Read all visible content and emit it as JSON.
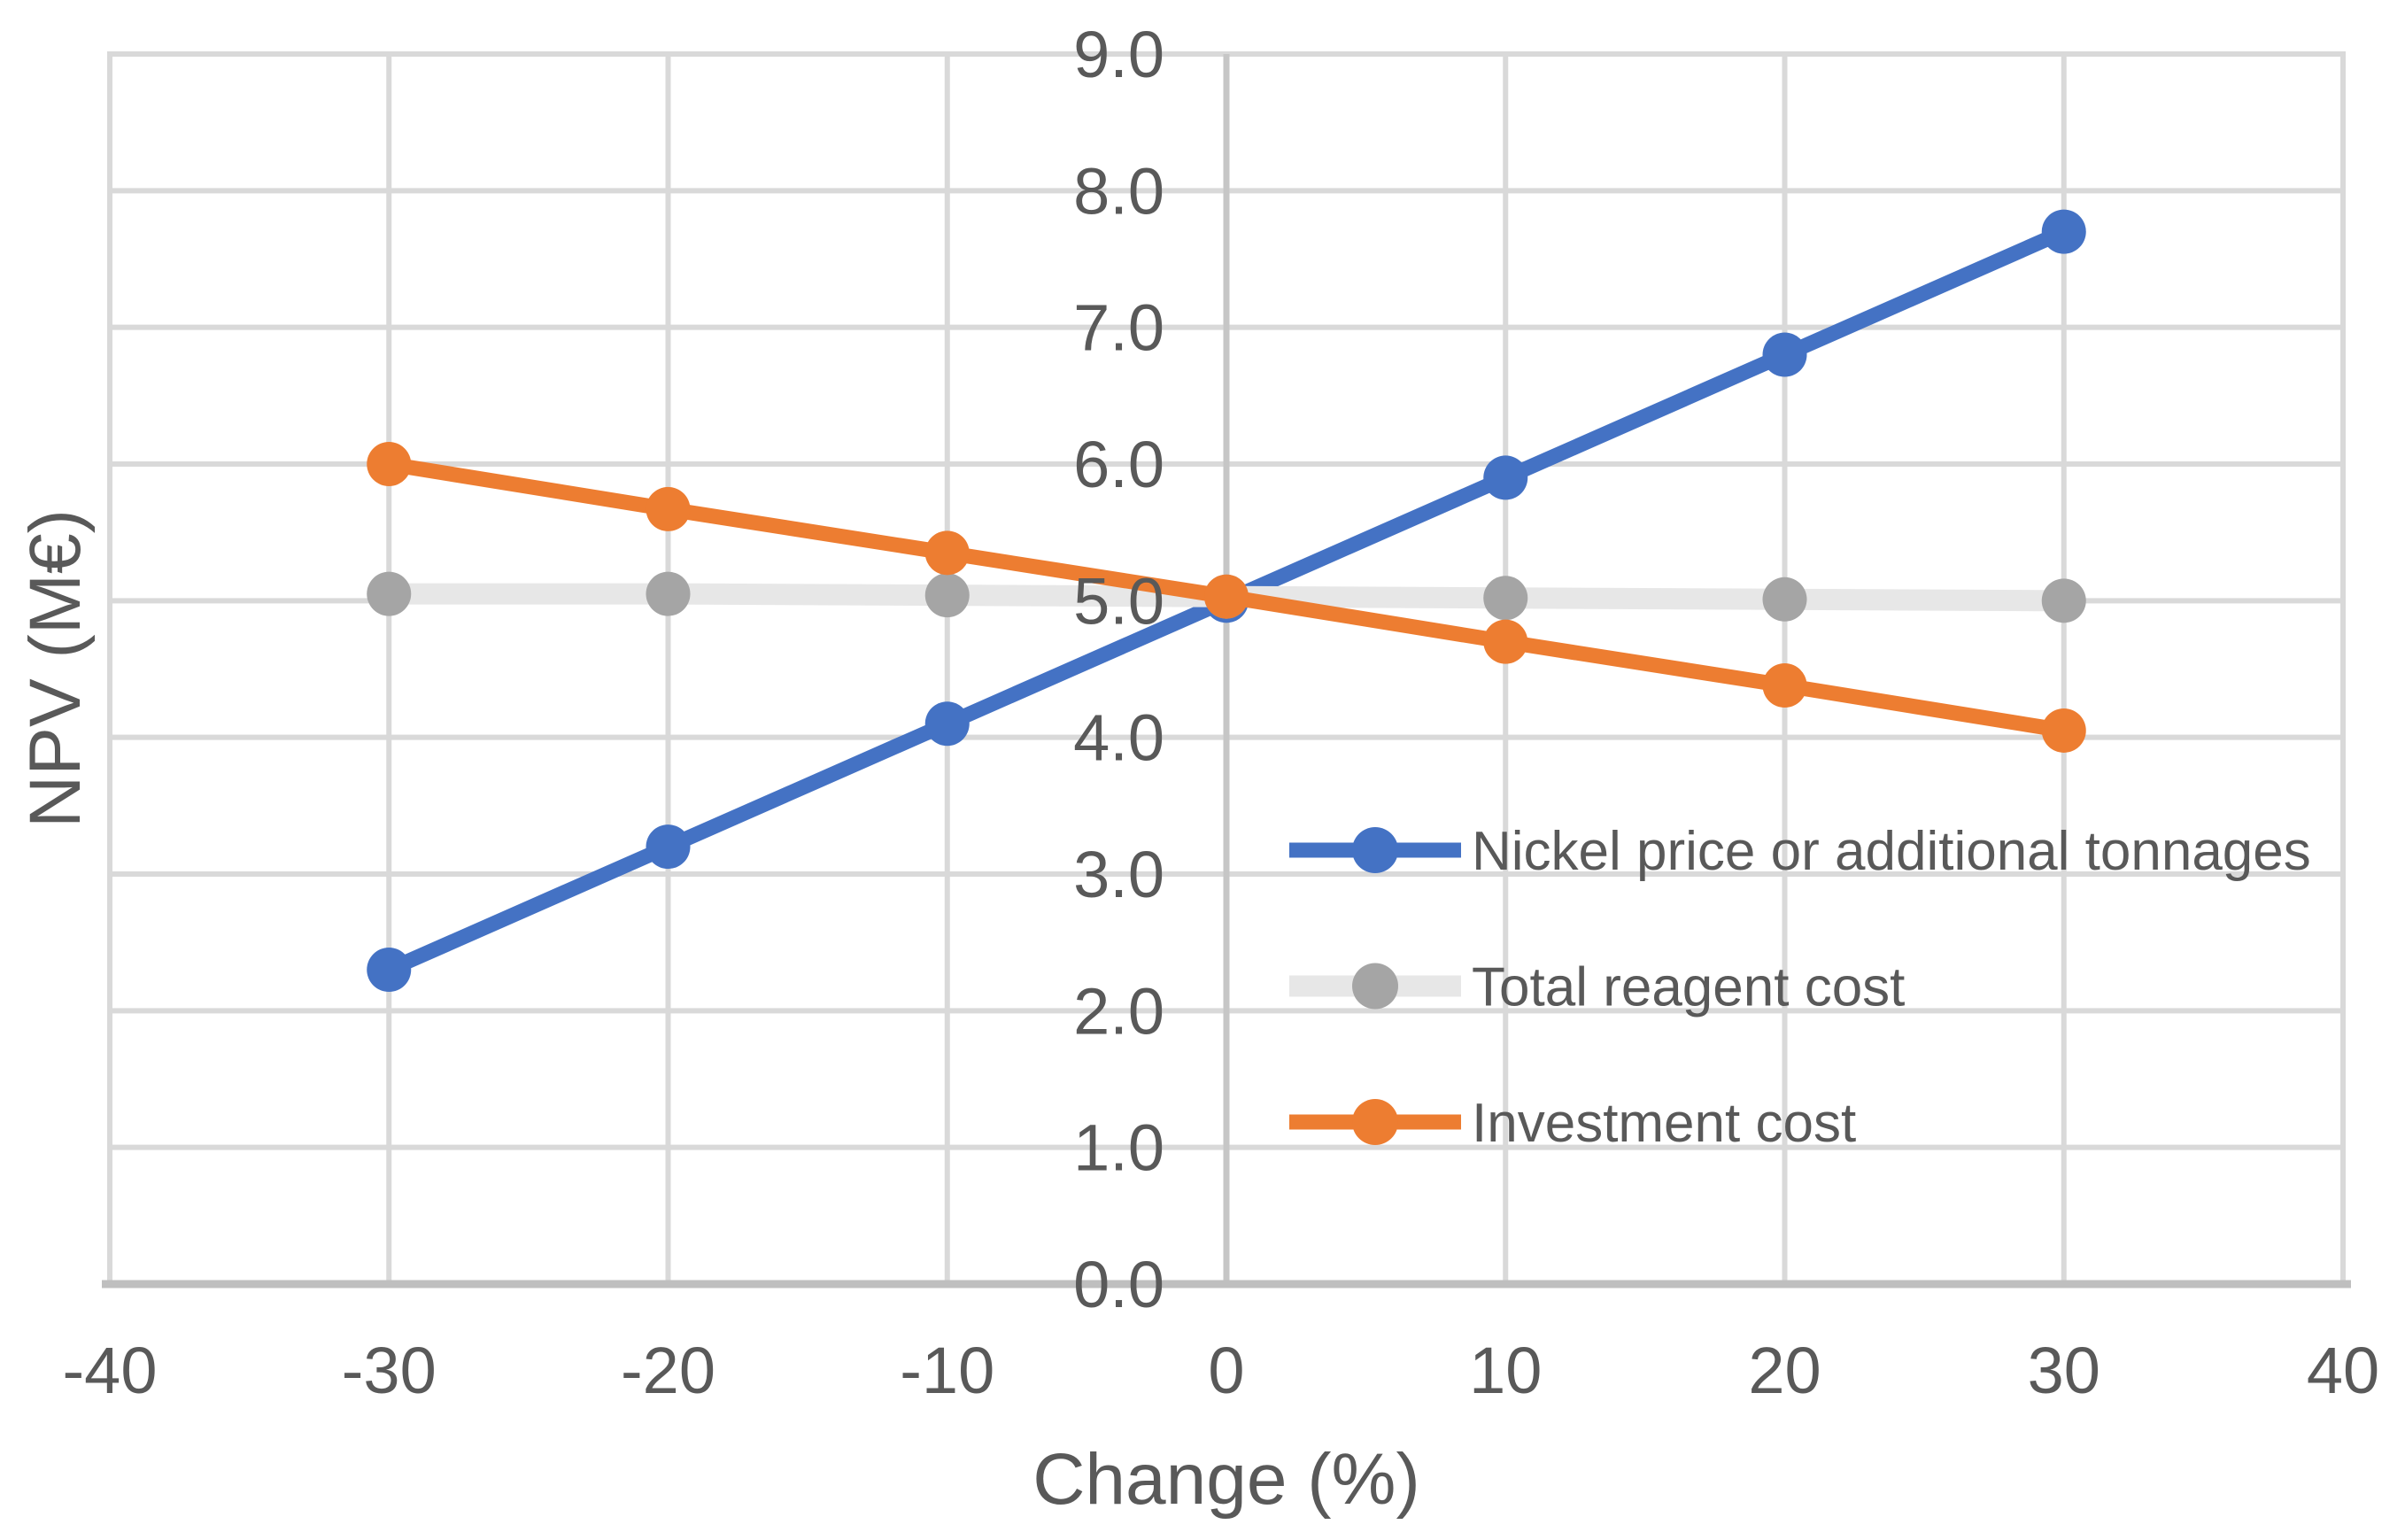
{
  "chart_data": {
    "type": "line",
    "title": "",
    "xlabel": "Change (%)",
    "ylabel": "NPV (M€)",
    "x": [
      -30,
      -20,
      -10,
      0,
      10,
      20,
      30
    ],
    "xlim": [
      -40,
      40
    ],
    "ylim": [
      0,
      9
    ],
    "x_tick_values": [
      -40,
      -30,
      -20,
      -10,
      0,
      10,
      20,
      30,
      40
    ],
    "x_tick_labels": [
      "-40",
      "-30",
      "-20",
      "-10",
      "0",
      "10",
      "20",
      "30",
      "40"
    ],
    "y_tick_values": [
      0,
      1,
      2,
      3,
      4,
      5,
      6,
      7,
      8,
      9
    ],
    "y_tick_labels": [
      "0.0",
      "1.0",
      "2.0",
      "3.0",
      "4.0",
      "5.0",
      "6.0",
      "7.0",
      "8.0",
      "9.0"
    ],
    "grid": true,
    "legend_position": "inside-right-center",
    "series": [
      {
        "name": "Nickel price or additional tonnages",
        "line_color": "#4472C4",
        "marker_color": "#4472C4",
        "line_width": 17,
        "values": [
          2.3,
          3.2,
          4.1,
          5.0,
          5.9,
          6.8,
          7.7
        ]
      },
      {
        "name": "Total reagent cost",
        "line_color": "#E7E7E7",
        "marker_color": "#A5A5A5",
        "line_width": 24,
        "values": [
          5.05,
          5.05,
          5.04,
          5.03,
          5.02,
          5.01,
          5.0
        ]
      },
      {
        "name": "Investment cost",
        "line_color": "#ED7D31",
        "marker_color": "#ED7D31",
        "line_width": 17,
        "values": [
          6.0,
          5.67,
          5.35,
          5.03,
          4.7,
          4.38,
          4.05
        ]
      }
    ]
  },
  "style": {
    "background": "#FFFFFF",
    "grid_color": "#D9D9D9",
    "axis_color": "#BFBFBF",
    "zero_axis_color": "#C6C6C6",
    "text_color": "#595959"
  }
}
